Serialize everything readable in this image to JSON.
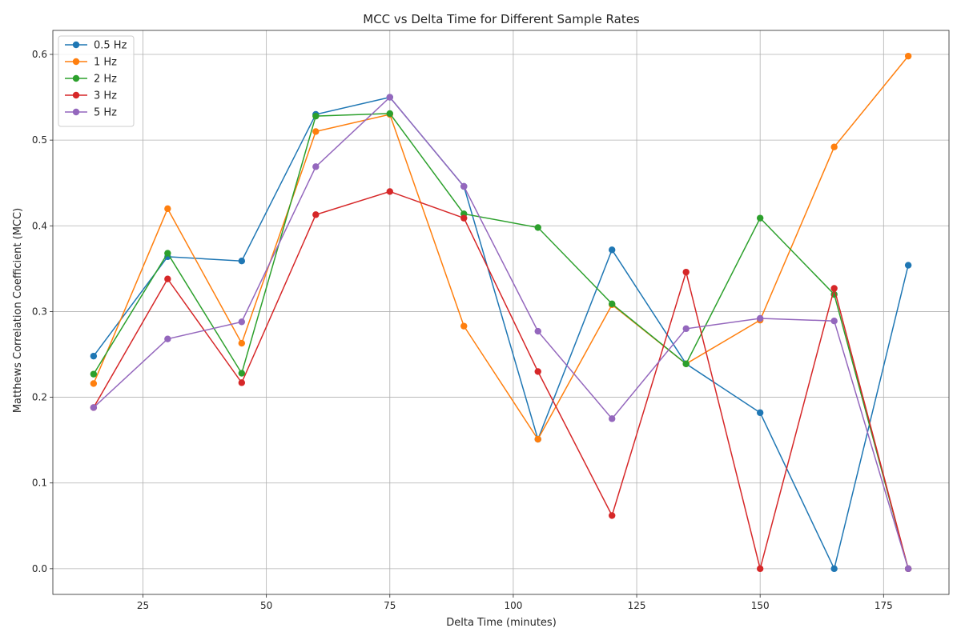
{
  "chart_data": {
    "type": "line",
    "title": "MCC vs Delta Time for Different Sample Rates",
    "xlabel": "Delta Time (minutes)",
    "ylabel": "Matthews Correlation Coefficient (MCC)",
    "xlim": [
      6.75,
      188.25
    ],
    "ylim": [
      -0.03,
      0.628
    ],
    "xticks": [
      25,
      50,
      75,
      100,
      125,
      150,
      175
    ],
    "yticks": [
      0.0,
      0.1,
      0.2,
      0.3,
      0.4,
      0.5,
      0.6
    ],
    "grid": true,
    "legend_position": "top-left",
    "marker": "circle",
    "x": [
      15,
      30,
      45,
      60,
      75,
      90,
      105,
      120,
      135,
      150,
      165,
      180
    ],
    "series": [
      {
        "name": "0.5 Hz",
        "color": "#1f77b4",
        "values": [
          0.248,
          0.364,
          0.359,
          0.53,
          0.55,
          0.446,
          0.151,
          0.372,
          0.239,
          0.182,
          0.0,
          0.354
        ]
      },
      {
        "name": "1 Hz",
        "color": "#ff7f0e",
        "values": [
          0.216,
          0.42,
          0.263,
          0.51,
          0.53,
          0.283,
          0.151,
          0.308,
          0.239,
          0.29,
          0.492,
          0.598
        ]
      },
      {
        "name": "2 Hz",
        "color": "#2ca02c",
        "values": [
          0.227,
          0.368,
          0.228,
          0.528,
          0.531,
          0.414,
          0.398,
          0.309,
          0.239,
          0.409,
          0.32,
          0.0
        ]
      },
      {
        "name": "3 Hz",
        "color": "#d62728",
        "values": [
          0.188,
          0.338,
          0.217,
          0.413,
          0.44,
          0.409,
          0.23,
          0.062,
          0.346,
          0.0,
          0.327,
          0.0
        ]
      },
      {
        "name": "5 Hz",
        "color": "#9467bd",
        "values": [
          0.188,
          0.268,
          0.288,
          0.469,
          0.55,
          0.446,
          0.277,
          0.175,
          0.28,
          0.292,
          0.289,
          0.0
        ]
      }
    ]
  }
}
